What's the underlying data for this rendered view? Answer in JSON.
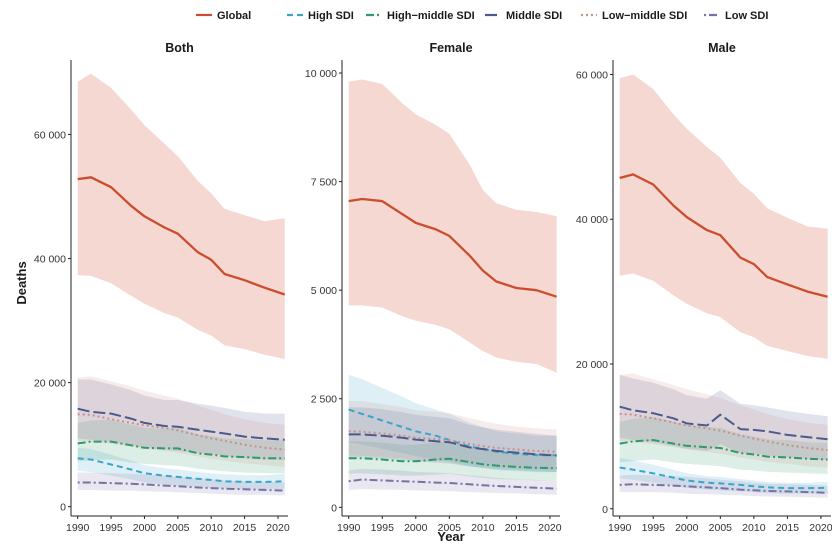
{
  "legend": {
    "items": [
      {
        "label": "Global",
        "color": "#cc4c2e",
        "dash": "solid"
      },
      {
        "label": "High SDI",
        "color": "#3aa5c9",
        "dash": "dashed"
      },
      {
        "label": "High−middle SDI",
        "color": "#2f9a6a",
        "dash": "dashdot"
      },
      {
        "label": "Middle SDI",
        "color": "#4b5a8c",
        "dash": "longdash"
      },
      {
        "label": "Low−middle SDI",
        "color": "#c98f8a",
        "dash": "dotted"
      },
      {
        "label": "Low SDI",
        "color": "#7a70a6",
        "dash": "dotdash"
      }
    ]
  },
  "axes": {
    "ylabel": "Deaths",
    "xlabel": "Year"
  },
  "chart_data": [
    {
      "type": "line",
      "title": "Both",
      "x": [
        1990,
        1992,
        1995,
        1998,
        2000,
        2003,
        2005,
        2008,
        2010,
        2012,
        2015,
        2018,
        2021
      ],
      "xticks": [
        1990,
        1995,
        2000,
        2005,
        2010,
        2015,
        2020
      ],
      "xlim": [
        1989,
        2021.5
      ],
      "ylim": [
        -1500,
        72000
      ],
      "yticks": [
        0,
        20000,
        40000,
        60000
      ],
      "ytick_labels": [
        "0",
        "20 000",
        "40 000",
        "60 000"
      ],
      "series": [
        {
          "name": "Global",
          "values": [
            52800,
            53100,
            51500,
            48500,
            46800,
            45000,
            44000,
            41000,
            39800,
            37500,
            36500,
            35300,
            34200
          ],
          "lower": [
            37300,
            37200,
            36000,
            34000,
            32700,
            31200,
            30500,
            28500,
            27600,
            26000,
            25400,
            24500,
            23800
          ],
          "upper": [
            68500,
            69800,
            67500,
            64000,
            61500,
            58500,
            56500,
            52500,
            50500,
            48000,
            47000,
            46000,
            46500
          ]
        },
        {
          "name": "High SDI",
          "values": [
            7800,
            7600,
            6800,
            6000,
            5400,
            5000,
            4800,
            4500,
            4300,
            4100,
            4000,
            4000,
            4100
          ],
          "lower": [
            5800,
            5600,
            5000,
            4400,
            3900,
            3600,
            3400,
            3200,
            3000,
            2900,
            2800,
            2800,
            2900
          ],
          "upper": [
            9500,
            9300,
            8400,
            7400,
            6700,
            6200,
            6000,
            5600,
            5400,
            5200,
            5100,
            5100,
            5300
          ]
        },
        {
          "name": "High−middle SDI",
          "values": [
            10200,
            10500,
            10500,
            9900,
            9500,
            9400,
            9400,
            8600,
            8400,
            8100,
            8000,
            7800,
            7800
          ],
          "lower": [
            7300,
            7500,
            7600,
            7100,
            6900,
            6700,
            6600,
            6100,
            5900,
            5700,
            5500,
            5400,
            5400
          ],
          "upper": [
            13500,
            13900,
            14000,
            13200,
            12700,
            12600,
            12700,
            11700,
            11400,
            11000,
            10900,
            10700,
            10700
          ]
        },
        {
          "name": "Middle SDI",
          "values": [
            15800,
            15300,
            15000,
            14200,
            13500,
            13000,
            12900,
            12400,
            12100,
            11800,
            11300,
            11000,
            10800
          ],
          "lower": [
            11000,
            10800,
            10500,
            10000,
            9500,
            9200,
            9000,
            8700,
            8500,
            8200,
            7800,
            7600,
            7500
          ],
          "upper": [
            20500,
            20500,
            19700,
            18800,
            17900,
            17200,
            17200,
            16600,
            16300,
            15900,
            15300,
            15000,
            15000
          ]
        },
        {
          "name": "Low−middle SDI",
          "values": [
            14900,
            14800,
            14100,
            13500,
            13100,
            12700,
            12300,
            11500,
            11000,
            10600,
            10000,
            9500,
            9200
          ],
          "lower": [
            10600,
            10500,
            10100,
            9700,
            9300,
            9000,
            8700,
            8100,
            7700,
            7400,
            7000,
            6700,
            6400
          ],
          "upper": [
            20800,
            21000,
            20200,
            19400,
            18700,
            17900,
            17400,
            16300,
            15600,
            14900,
            14100,
            13500,
            13200
          ]
        },
        {
          "name": "Low SDI",
          "values": [
            3900,
            3900,
            3800,
            3700,
            3600,
            3400,
            3300,
            3100,
            3000,
            2900,
            2800,
            2700,
            2600
          ],
          "lower": [
            2700,
            2700,
            2600,
            2600,
            2500,
            2400,
            2300,
            2200,
            2100,
            2000,
            1900,
            1900,
            1800
          ],
          "upper": [
            5500,
            5500,
            5400,
            5300,
            5200,
            5000,
            4800,
            4600,
            4400,
            4200,
            4100,
            4000,
            3900
          ]
        }
      ]
    },
    {
      "type": "line",
      "title": "Female",
      "x": [
        1990,
        1992,
        1995,
        1998,
        2000,
        2003,
        2005,
        2008,
        2010,
        2012,
        2015,
        2018,
        2021
      ],
      "xticks": [
        1990,
        1995,
        2000,
        2005,
        2010,
        2015,
        2020
      ],
      "xlim": [
        1989,
        2021.5
      ],
      "ylim": [
        -200,
        10300
      ],
      "yticks": [
        0,
        2500,
        5000,
        7500,
        10000
      ],
      "ytick_labels": [
        "0",
        "2 500",
        "5 000",
        "7 500",
        "10 000"
      ],
      "series": [
        {
          "name": "Global",
          "values": [
            7050,
            7100,
            7050,
            6750,
            6550,
            6400,
            6250,
            5800,
            5450,
            5200,
            5050,
            5000,
            4850
          ],
          "lower": [
            4650,
            4650,
            4600,
            4400,
            4300,
            4200,
            4100,
            3800,
            3600,
            3450,
            3350,
            3300,
            3100
          ],
          "upper": [
            9800,
            9850,
            9750,
            9300,
            9050,
            8800,
            8600,
            7900,
            7300,
            7000,
            6850,
            6800,
            6700
          ]
        },
        {
          "name": "High SDI",
          "values": [
            2250,
            2150,
            2000,
            1850,
            1750,
            1650,
            1550,
            1400,
            1350,
            1280,
            1230,
            1200,
            1200
          ],
          "lower": [
            1500,
            1450,
            1350,
            1250,
            1180,
            1100,
            1050,
            950,
            900,
            860,
            830,
            810,
            810
          ],
          "upper": [
            3050,
            2950,
            2750,
            2550,
            2400,
            2250,
            2150,
            1950,
            1850,
            1750,
            1700,
            1650,
            1650
          ]
        },
        {
          "name": "High−middle SDI",
          "values": [
            1130,
            1130,
            1100,
            1060,
            1060,
            1100,
            1120,
            1040,
            990,
            960,
            930,
            910,
            900
          ],
          "lower": [
            780,
            780,
            760,
            730,
            730,
            750,
            770,
            710,
            680,
            650,
            640,
            620,
            610
          ],
          "upper": [
            1520,
            1520,
            1490,
            1440,
            1440,
            1490,
            1520,
            1410,
            1350,
            1310,
            1270,
            1240,
            1230
          ]
        },
        {
          "name": "Middle SDI",
          "values": [
            1680,
            1680,
            1650,
            1600,
            1560,
            1520,
            1500,
            1380,
            1340,
            1300,
            1260,
            1220,
            1190
          ],
          "lower": [
            1150,
            1150,
            1120,
            1090,
            1060,
            1030,
            1010,
            940,
            910,
            880,
            860,
            830,
            810
          ],
          "upper": [
            2300,
            2300,
            2260,
            2190,
            2130,
            2080,
            2050,
            1900,
            1840,
            1790,
            1740,
            1690,
            1650
          ]
        },
        {
          "name": "Low−middle SDI",
          "values": [
            1750,
            1740,
            1700,
            1650,
            1600,
            1570,
            1550,
            1460,
            1410,
            1370,
            1330,
            1300,
            1280
          ],
          "lower": [
            1200,
            1190,
            1160,
            1130,
            1090,
            1070,
            1060,
            1000,
            960,
            940,
            910,
            890,
            870
          ],
          "upper": [
            2450,
            2440,
            2380,
            2310,
            2240,
            2200,
            2170,
            2050,
            1980,
            1920,
            1860,
            1820,
            1790
          ]
        },
        {
          "name": "Low SDI",
          "values": [
            600,
            640,
            620,
            600,
            590,
            570,
            560,
            530,
            510,
            490,
            470,
            450,
            430
          ],
          "lower": [
            400,
            420,
            410,
            400,
            390,
            380,
            370,
            350,
            340,
            330,
            320,
            300,
            290
          ],
          "upper": [
            850,
            890,
            870,
            840,
            820,
            800,
            780,
            740,
            710,
            680,
            650,
            630,
            610
          ]
        }
      ]
    },
    {
      "type": "line",
      "title": "Male",
      "x": [
        1990,
        1992,
        1995,
        1998,
        2000,
        2003,
        2005,
        2008,
        2010,
        2012,
        2015,
        2018,
        2021
      ],
      "xticks": [
        1990,
        1995,
        2000,
        2005,
        2010,
        2015,
        2020
      ],
      "xlim": [
        1989,
        2021.5
      ],
      "ylim": [
        -1000,
        62000
      ],
      "yticks": [
        0,
        20000,
        40000,
        60000
      ],
      "ytick_labels": [
        "0",
        "20 000",
        "40 000",
        "60 000"
      ],
      "series": [
        {
          "name": "Global",
          "values": [
            45700,
            46200,
            44800,
            41900,
            40300,
            38500,
            37800,
            34700,
            33800,
            32000,
            31000,
            30000,
            29300
          ],
          "lower": [
            32200,
            32500,
            31500,
            29500,
            28300,
            27000,
            26500,
            24400,
            23700,
            22500,
            21800,
            21100,
            20700
          ],
          "upper": [
            59500,
            60000,
            58000,
            54500,
            52500,
            50000,
            48500,
            45000,
            43500,
            41500,
            40200,
            39000,
            38700
          ]
        },
        {
          "name": "High SDI",
          "values": [
            5700,
            5400,
            4900,
            4300,
            3900,
            3600,
            3500,
            3300,
            3100,
            2950,
            2850,
            2850,
            2900
          ],
          "lower": [
            4200,
            4000,
            3600,
            3200,
            2900,
            2650,
            2550,
            2400,
            2300,
            2150,
            2100,
            2100,
            2150
          ],
          "upper": [
            7000,
            6700,
            6100,
            5400,
            4900,
            4500,
            4400,
            4100,
            3900,
            3700,
            3600,
            3600,
            3700
          ]
        },
        {
          "name": "High−middle SDI",
          "values": [
            9000,
            9300,
            9500,
            9000,
            8700,
            8500,
            8400,
            7700,
            7500,
            7200,
            7100,
            6900,
            6800
          ],
          "lower": [
            6400,
            6600,
            6800,
            6400,
            6200,
            6000,
            5900,
            5400,
            5300,
            5100,
            5000,
            4900,
            4800
          ],
          "upper": [
            12000,
            12400,
            12700,
            12000,
            11600,
            11300,
            11200,
            10300,
            10000,
            9600,
            9500,
            9200,
            9100
          ]
        },
        {
          "name": "Middle SDI",
          "values": [
            14100,
            13600,
            13200,
            12500,
            11800,
            11500,
            13000,
            11000,
            10900,
            10700,
            10200,
            9900,
            9600
          ],
          "lower": [
            9800,
            9500,
            9200,
            8700,
            8300,
            8000,
            8900,
            7700,
            7600,
            7400,
            7100,
            6900,
            6700
          ],
          "upper": [
            18500,
            18000,
            17400,
            16500,
            15700,
            15200,
            16400,
            14500,
            14300,
            14000,
            13500,
            13100,
            12800
          ]
        },
        {
          "name": "Low−middle SDI",
          "values": [
            13100,
            13000,
            12500,
            11900,
            11500,
            11100,
            10800,
            10100,
            9700,
            9300,
            8800,
            8400,
            8100
          ],
          "lower": [
            9300,
            9200,
            8900,
            8500,
            8200,
            7900,
            7600,
            7100,
            6800,
            6500,
            6200,
            5900,
            5700
          ],
          "upper": [
            18500,
            18700,
            17900,
            17100,
            16500,
            15800,
            15300,
            14300,
            13700,
            13100,
            12400,
            11900,
            11600
          ]
        },
        {
          "name": "Low SDI",
          "values": [
            3300,
            3400,
            3300,
            3200,
            3100,
            2950,
            2850,
            2650,
            2550,
            2450,
            2400,
            2300,
            2200
          ],
          "lower": [
            2300,
            2300,
            2300,
            2200,
            2100,
            2000,
            1950,
            1850,
            1750,
            1700,
            1650,
            1600,
            1550
          ],
          "upper": [
            4600,
            4700,
            4600,
            4500,
            4400,
            4200,
            4000,
            3800,
            3600,
            3450,
            3400,
            3300,
            3200
          ]
        }
      ]
    }
  ]
}
